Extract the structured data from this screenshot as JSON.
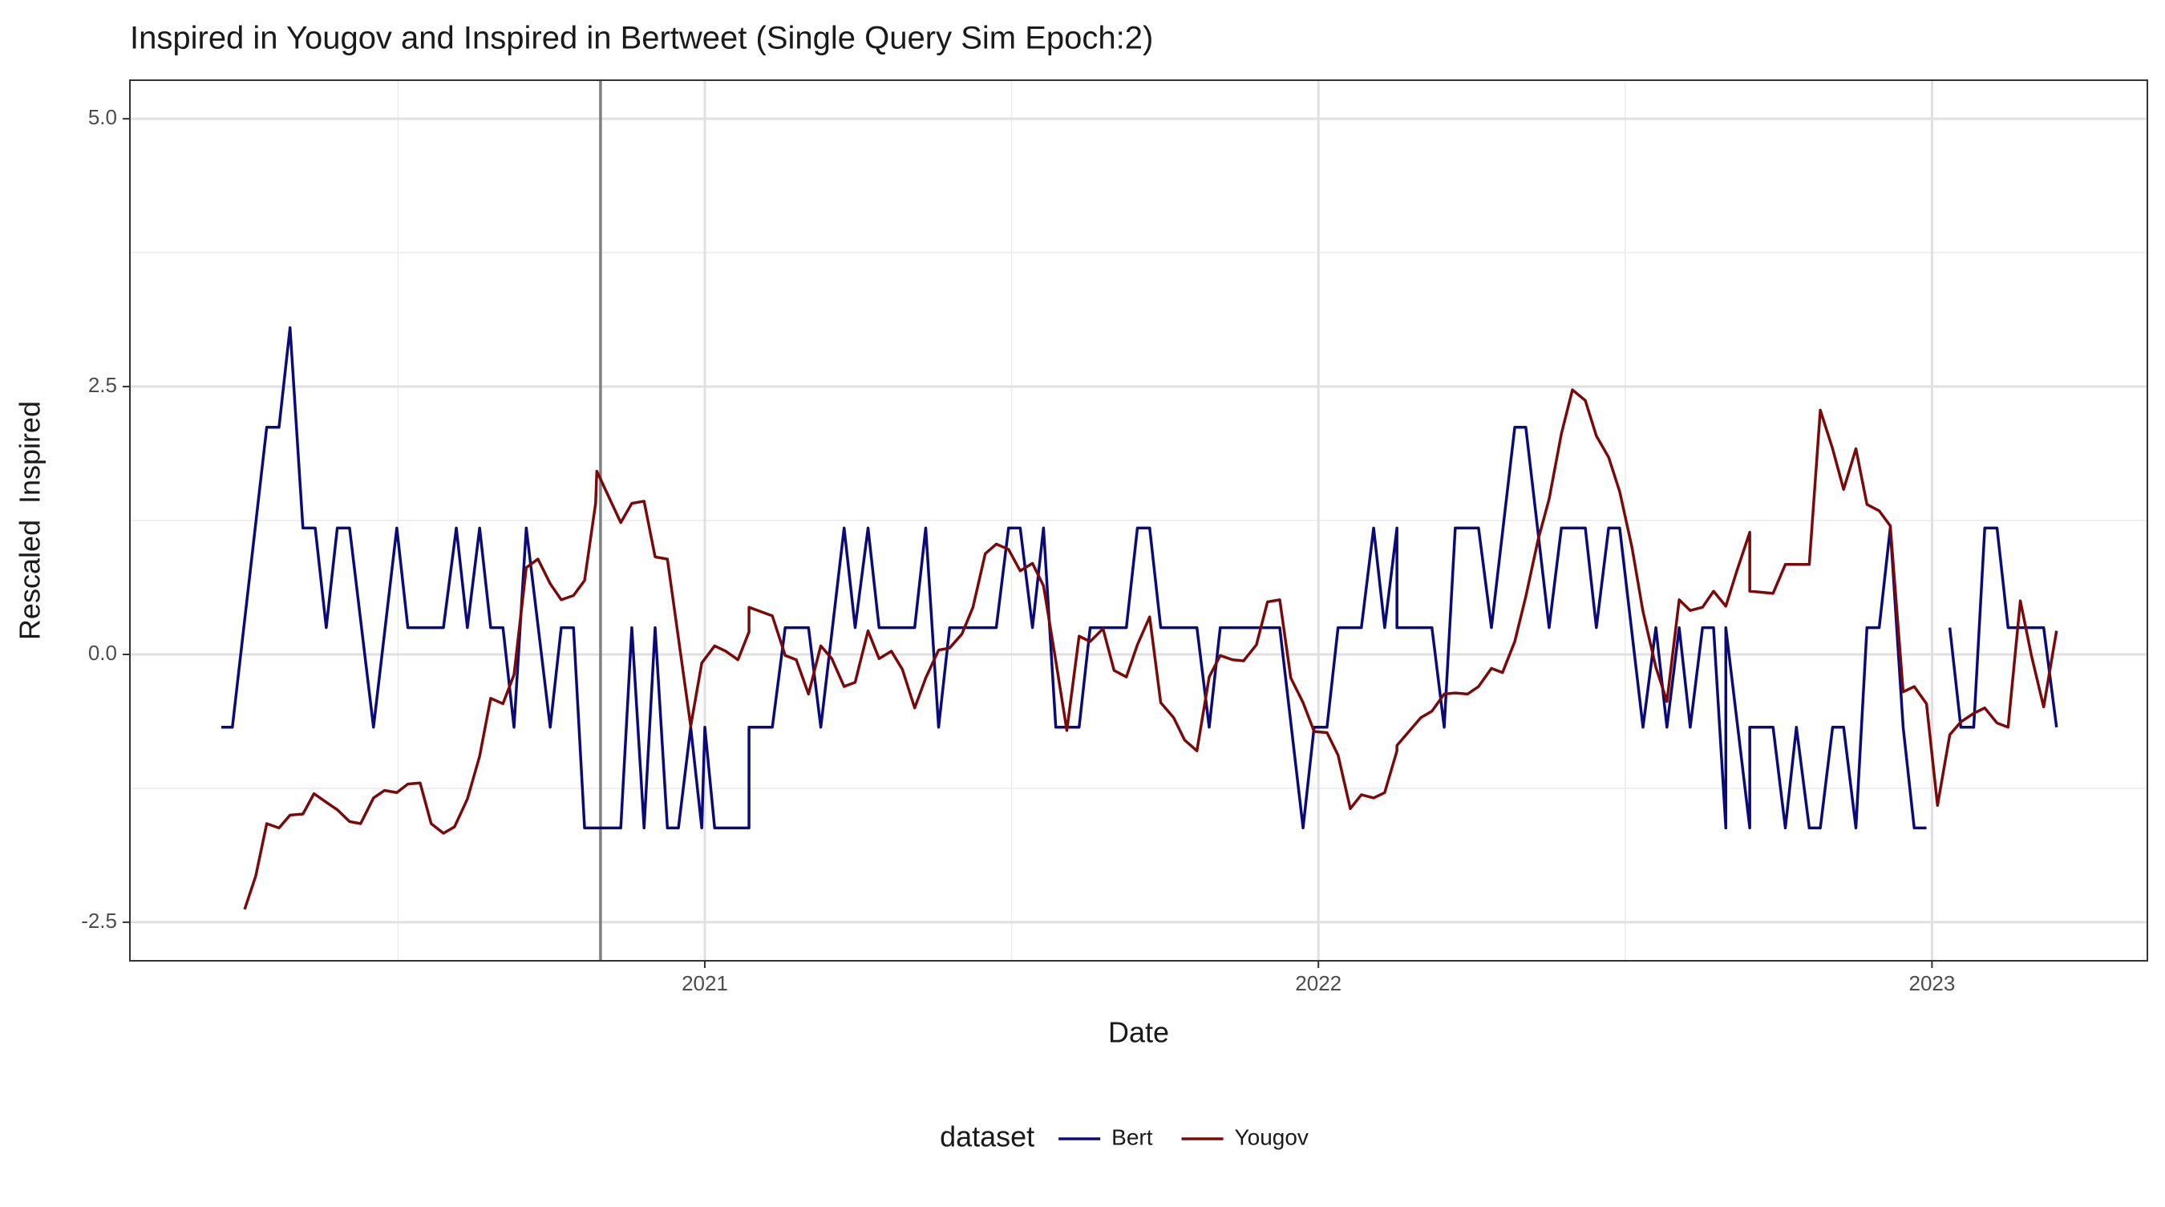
{
  "chart_data": {
    "type": "line",
    "title": "Inspired in Yougov and Inspired in Bertweet (Single Query Sim Epoch:2)",
    "x_label": "Date",
    "y_label": "Rescaled  Inspired",
    "legend_title": "dataset",
    "legend_position": "bottom",
    "xlim": [
      2020.063,
      2023.351
    ],
    "ylim": [
      -2.86,
      5.36
    ],
    "xticks": [
      2021,
      2022,
      2023
    ],
    "yticks": [
      -2.5,
      {
        "value": 0,
        "label": "0.0"
      },
      2.5,
      {
        "value": 5,
        "label": "5.0"
      }
    ],
    "minor_xticks": [
      2020.5,
      2021.5,
      2022.5
    ],
    "minor_yticks": [
      -1.25,
      1.25,
      3.75
    ],
    "grid": true,
    "vline": 2020.83,
    "vline_color": "#808080",
    "series": [
      {
        "name": "Bert",
        "color": "#0a0a78",
        "x": [
          2020.212,
          2020.23,
          2020.286,
          2020.306,
          2020.324,
          2020.345,
          2020.365,
          2020.383,
          2020.401,
          2020.421,
          2020.46,
          2020.498,
          2020.516,
          2020.574,
          2020.595,
          2020.613,
          2020.633,
          2020.651,
          2020.671,
          2020.689,
          2020.709,
          2020.748,
          2020.766,
          2020.786,
          2020.804,
          2020.863,
          2020.881,
          2020.901,
          2020.919,
          2020.939,
          2020.957,
          2020.977,
          2020.995,
          2021.0,
          2021.016,
          2021.072,
          2021.072,
          2021.11,
          2021.131,
          2021.169,
          2021.189,
          2021.227,
          2021.245,
          2021.266,
          2021.284,
          2021.342,
          2021.36,
          2021.381,
          2021.399,
          2021.475,
          2021.495,
          2021.514,
          2021.534,
          2021.552,
          2021.572,
          2021.61,
          2021.628,
          2021.687,
          2021.705,
          2021.725,
          2021.743,
          2021.802,
          2021.822,
          2021.84,
          2021.937,
          2021.975,
          2021.993,
          2022.014,
          2022.032,
          2022.07,
          2022.09,
          2022.108,
          2022.128,
          2022.128,
          2022.185,
          2022.205,
          2022.223,
          2022.261,
          2022.282,
          2022.32,
          2022.338,
          2022.376,
          2022.396,
          2022.435,
          2022.453,
          2022.473,
          2022.491,
          2022.529,
          2022.55,
          2022.568,
          2022.588,
          2022.606,
          2022.626,
          2022.644,
          2022.664,
          2022.664,
          2022.703,
          2022.703,
          2022.741,
          2022.761,
          2022.779,
          2022.8,
          2022.818,
          2022.838,
          2022.856,
          2022.876,
          2022.894,
          2022.914,
          2022.932,
          2022.953,
          2022.971,
          2022.991,
          2023.009,
          2023.029,
          2023.047,
          2023.068,
          2023.086,
          2023.106,
          2023.124,
          2023.182,
          2023.203
        ],
        "values": [
          -0.68,
          -0.68,
          2.12,
          2.12,
          3.05,
          1.18,
          1.18,
          0.25,
          1.18,
          1.18,
          -0.68,
          1.18,
          0.25,
          0.25,
          1.18,
          0.25,
          1.18,
          0.25,
          0.25,
          -0.68,
          1.18,
          -0.68,
          0.25,
          0.25,
          -1.62,
          -1.62,
          0.25,
          -1.62,
          0.25,
          -1.62,
          -1.62,
          -0.68,
          -1.62,
          -0.68,
          -1.62,
          -1.62,
          -0.68,
          -0.68,
          0.25,
          0.25,
          -0.68,
          1.18,
          0.25,
          1.18,
          0.25,
          0.25,
          1.18,
          -0.68,
          0.25,
          0.25,
          1.18,
          1.18,
          0.25,
          1.18,
          -0.68,
          -0.68,
          0.25,
          0.25,
          1.18,
          1.18,
          0.25,
          0.25,
          -0.68,
          0.25,
          0.25,
          -1.62,
          -0.68,
          -0.68,
          0.25,
          0.25,
          1.18,
          0.25,
          1.18,
          0.25,
          0.25,
          -0.68,
          1.18,
          1.18,
          0.25,
          2.12,
          2.12,
          0.25,
          1.18,
          1.18,
          0.25,
          1.18,
          1.18,
          -0.68,
          0.25,
          -0.68,
          0.25,
          -0.68,
          0.25,
          0.25,
          -1.62,
          0.25,
          -1.62,
          -0.68,
          -0.68,
          -1.62,
          -0.68,
          -1.62,
          -1.62,
          -0.68,
          -0.68,
          -1.62,
          0.25,
          0.25,
          1.18,
          -0.68,
          -1.62,
          -1.62,
          null,
          0.25,
          -0.68,
          -0.68,
          1.18,
          1.18,
          0.25,
          0.25,
          -0.68
        ]
      },
      {
        "name": "Yougov",
        "color": "#7a0a0a",
        "x": [
          2020.25,
          2020.268,
          2020.286,
          2020.306,
          2020.324,
          2020.345,
          2020.363,
          2020.383,
          2020.401,
          2020.421,
          2020.439,
          2020.46,
          2020.478,
          2020.498,
          2020.516,
          2020.536,
          2020.554,
          2020.574,
          2020.592,
          2020.613,
          2020.633,
          2020.651,
          2020.671,
          2020.689,
          2020.709,
          2020.728,
          2020.748,
          2020.766,
          2020.786,
          2020.804,
          2020.822,
          2020.824,
          2020.863,
          2020.881,
          2020.901,
          2020.919,
          2020.939,
          2020.977,
          2020.995,
          2021.016,
          2021.034,
          2021.054,
          2021.072,
          2021.072,
          2021.11,
          2021.131,
          2021.149,
          2021.169,
          2021.189,
          2021.207,
          2021.227,
          2021.245,
          2021.266,
          2021.284,
          2021.304,
          2021.322,
          2021.342,
          2021.36,
          2021.381,
          2021.399,
          2021.419,
          2021.437,
          2021.457,
          2021.475,
          2021.495,
          2021.514,
          2021.534,
          2021.552,
          2021.572,
          2021.59,
          2021.61,
          2021.628,
          2021.649,
          2021.667,
          2021.687,
          2021.705,
          2021.725,
          2021.743,
          2021.764,
          2021.782,
          2021.802,
          2021.822,
          2021.84,
          2021.86,
          2021.878,
          2021.899,
          2021.917,
          2021.937,
          2021.955,
          2021.975,
          2021.993,
          2022.014,
          2022.032,
          2022.052,
          2022.07,
          2022.09,
          2022.108,
          2022.128,
          2022.128,
          2022.167,
          2022.185,
          2022.205,
          2022.223,
          2022.243,
          2022.261,
          2022.282,
          2022.3,
          2022.32,
          2022.338,
          2022.358,
          2022.376,
          2022.396,
          2022.414,
          2022.435,
          2022.453,
          2022.473,
          2022.491,
          2022.511,
          2022.529,
          2022.55,
          2022.568,
          2022.588,
          2022.606,
          2022.626,
          2022.644,
          2022.664,
          2022.682,
          2022.703,
          2022.703,
          2022.741,
          2022.761,
          2022.8,
          2022.818,
          2022.838,
          2022.856,
          2022.876,
          2022.894,
          2022.914,
          2022.932,
          2022.953,
          2022.971,
          2022.991,
          2023.009,
          2023.029,
          2023.047,
          2023.068,
          2023.086,
          2023.106,
          2023.124,
          2023.144,
          2023.162,
          2023.182,
          2023.203
        ],
        "values": [
          -2.38,
          -2.07,
          -1.58,
          -1.62,
          -1.5,
          -1.49,
          -1.3,
          -1.38,
          -1.45,
          -1.56,
          -1.58,
          -1.34,
          -1.27,
          -1.29,
          -1.21,
          -1.2,
          -1.58,
          -1.67,
          -1.61,
          -1.35,
          -0.95,
          -0.41,
          -0.46,
          -0.19,
          0.81,
          0.89,
          0.66,
          0.51,
          0.55,
          0.69,
          1.41,
          1.71,
          1.23,
          1.41,
          1.43,
          0.91,
          0.89,
          -0.67,
          -0.08,
          0.08,
          0.03,
          -0.05,
          0.21,
          0.44,
          0.36,
          -0.01,
          -0.05,
          -0.37,
          0.08,
          -0.04,
          -0.3,
          -0.26,
          0.22,
          -0.04,
          0.03,
          -0.14,
          -0.5,
          -0.22,
          0.04,
          0.06,
          0.19,
          0.44,
          0.94,
          1.03,
          0.98,
          0.78,
          0.85,
          0.64,
          -0.06,
          -0.71,
          0.17,
          0.12,
          0.24,
          -0.15,
          -0.21,
          0.09,
          0.35,
          -0.45,
          -0.59,
          -0.8,
          -0.9,
          -0.21,
          -0.01,
          -0.05,
          -0.06,
          0.09,
          0.49,
          0.51,
          -0.22,
          -0.45,
          -0.72,
          -0.73,
          -0.94,
          -1.44,
          -1.31,
          -1.34,
          -1.29,
          -0.9,
          -0.85,
          -0.59,
          -0.53,
          -0.37,
          -0.36,
          -0.37,
          -0.3,
          -0.13,
          -0.17,
          0.12,
          0.54,
          1.07,
          1.45,
          2.06,
          2.47,
          2.37,
          2.04,
          1.84,
          1.52,
          1.0,
          0.4,
          -0.12,
          -0.44,
          0.51,
          0.41,
          0.44,
          0.59,
          0.45,
          0.78,
          1.14,
          0.59,
          0.57,
          0.84,
          0.84,
          2.28,
          1.92,
          1.54,
          1.92,
          1.4,
          1.34,
          1.2,
          -0.35,
          -0.3,
          -0.46,
          -1.41,
          -0.75,
          -0.63,
          -0.55,
          -0.5,
          -0.64,
          -0.68,
          0.5,
          -0.01,
          -0.49,
          0.22
        ]
      }
    ]
  }
}
